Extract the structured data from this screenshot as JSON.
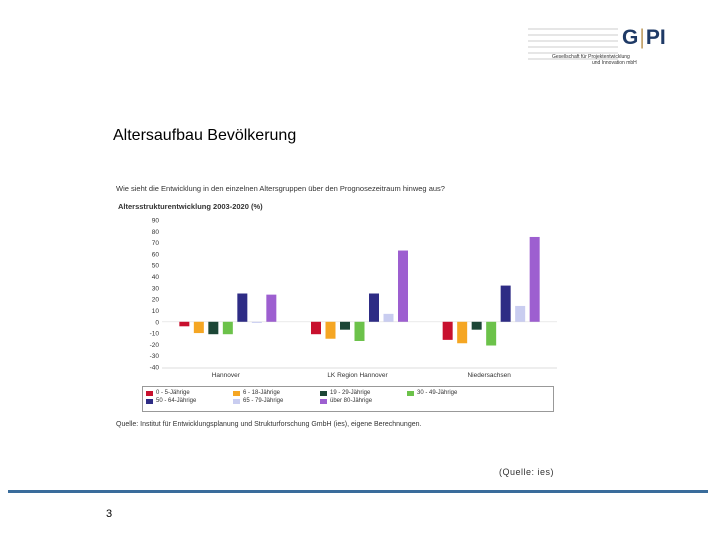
{
  "logo": {
    "mark_left": "G",
    "mark_right": "PI",
    "sub_line1": "Gesellschaft für Projektentwicklung",
    "sub_line2": "und Innovation mbH"
  },
  "slide": {
    "title": "Altersaufbau Bevölkerung",
    "quelle": "(Quelle: ies)",
    "page_number": "3"
  },
  "chart_data": {
    "type": "bar",
    "question": "Wie sieht die Entwicklung in den einzelnen Altersgruppen über den Prognosezeitraum hinweg aus?",
    "title": "Altersstrukturentwicklung 2003-2020 (%)",
    "categories": [
      "Hannover",
      "LK Region Hannover",
      "Niedersachsen"
    ],
    "ylim": [
      -40,
      90
    ],
    "yticks": [
      90,
      80,
      70,
      60,
      50,
      40,
      30,
      20,
      10,
      0,
      -10,
      -20,
      -30,
      -40
    ],
    "grid": false,
    "legend_position": "bottom",
    "series": [
      {
        "name": "0 - 5-Jährige",
        "color": "#c8102e",
        "values": [
          -4,
          -11,
          -16
        ]
      },
      {
        "name": "6 - 18-Jährige",
        "color": "#f5a623",
        "values": [
          -10,
          -15,
          -19
        ]
      },
      {
        "name": "19 - 29-Jährige",
        "color": "#1c4636",
        "values": [
          -11,
          -7,
          -7
        ]
      },
      {
        "name": "30 - 49-Jährige",
        "color": "#6cc24a",
        "values": [
          -11,
          -17,
          -21
        ]
      },
      {
        "name": "50 - 64-Jährige",
        "color": "#2e2c85",
        "values": [
          25,
          25,
          32
        ]
      },
      {
        "name": "65 - 79-Jährige",
        "color": "#c9cdf0",
        "values": [
          -1,
          7,
          14
        ]
      },
      {
        "name": "über 80-Jährige",
        "color": "#9d5fd0",
        "values": [
          24,
          63,
          75
        ]
      }
    ],
    "source": "Quelle: Institut für Entwicklungsplanung und Strukturforschung GmbH (ies), eigene Berechnungen."
  }
}
